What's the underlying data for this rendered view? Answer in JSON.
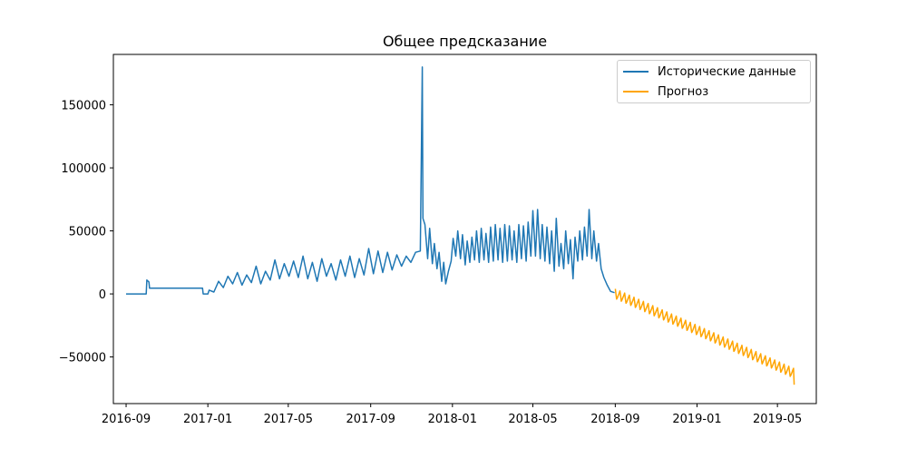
{
  "chart_data": {
    "type": "line",
    "title": "Общее предсказание",
    "xlabel": "",
    "ylabel": "",
    "xlim": [
      "2016-08-13",
      "2019-06-28"
    ],
    "ylim": [
      -87000,
      190000
    ],
    "grid": false,
    "legend_position": "top-right",
    "x_ticks": [
      "2016-09",
      "2017-01",
      "2017-05",
      "2017-09",
      "2018-01",
      "2018-05",
      "2018-09",
      "2019-01",
      "2019-05"
    ],
    "y_ticks": [
      -50000,
      0,
      50000,
      100000,
      150000
    ],
    "y_tick_labels": [
      "−50000",
      "0",
      "50000",
      "100000",
      "150000"
    ],
    "series": [
      {
        "name": "Исторические данные",
        "color": "#1f77b4",
        "points": [
          [
            "2016-09-01",
            0
          ],
          [
            "2016-10-01",
            0
          ],
          [
            "2016-10-02",
            11000
          ],
          [
            "2016-10-05",
            9500
          ],
          [
            "2016-10-06",
            4500
          ],
          [
            "2016-12-24",
            4500
          ],
          [
            "2016-12-25",
            0
          ],
          [
            "2017-01-01",
            0
          ],
          [
            "2017-01-03",
            3000
          ],
          [
            "2017-01-10",
            1500
          ],
          [
            "2017-01-17",
            10000
          ],
          [
            "2017-01-24",
            5000
          ],
          [
            "2017-01-31",
            14000
          ],
          [
            "2017-02-07",
            8000
          ],
          [
            "2017-02-14",
            17000
          ],
          [
            "2017-02-21",
            7000
          ],
          [
            "2017-02-28",
            15000
          ],
          [
            "2017-03-07",
            9000
          ],
          [
            "2017-03-14",
            22000
          ],
          [
            "2017-03-21",
            8000
          ],
          [
            "2017-03-28",
            18000
          ],
          [
            "2017-04-04",
            11000
          ],
          [
            "2017-04-11",
            27000
          ],
          [
            "2017-04-18",
            12000
          ],
          [
            "2017-04-25",
            24000
          ],
          [
            "2017-05-02",
            14000
          ],
          [
            "2017-05-09",
            26000
          ],
          [
            "2017-05-16",
            13000
          ],
          [
            "2017-05-23",
            30000
          ],
          [
            "2017-05-30",
            12000
          ],
          [
            "2017-06-06",
            25000
          ],
          [
            "2017-06-13",
            10000
          ],
          [
            "2017-06-20",
            28000
          ],
          [
            "2017-06-27",
            14000
          ],
          [
            "2017-07-04",
            24000
          ],
          [
            "2017-07-11",
            11000
          ],
          [
            "2017-07-18",
            27000
          ],
          [
            "2017-07-25",
            14000
          ],
          [
            "2017-08-01",
            30000
          ],
          [
            "2017-08-08",
            13000
          ],
          [
            "2017-08-15",
            28000
          ],
          [
            "2017-08-22",
            15000
          ],
          [
            "2017-08-29",
            36000
          ],
          [
            "2017-09-05",
            16000
          ],
          [
            "2017-09-12",
            34000
          ],
          [
            "2017-09-19",
            17000
          ],
          [
            "2017-09-26",
            33000
          ],
          [
            "2017-10-03",
            19000
          ],
          [
            "2017-10-10",
            31000
          ],
          [
            "2017-10-17",
            22000
          ],
          [
            "2017-10-24",
            30000
          ],
          [
            "2017-10-31",
            25000
          ],
          [
            "2017-11-07",
            33000
          ],
          [
            "2017-11-14",
            34000
          ],
          [
            "2017-11-17",
            180000
          ],
          [
            "2017-11-18",
            60000
          ],
          [
            "2017-11-21",
            55000
          ],
          [
            "2017-11-25",
            28000
          ],
          [
            "2017-11-28",
            52000
          ],
          [
            "2017-12-02",
            24000
          ],
          [
            "2017-12-05",
            40000
          ],
          [
            "2017-12-09",
            20000
          ],
          [
            "2017-12-12",
            33000
          ],
          [
            "2017-12-16",
            10000
          ],
          [
            "2017-12-19",
            25000
          ],
          [
            "2017-12-22",
            8000
          ],
          [
            "2017-12-26",
            18000
          ],
          [
            "2017-12-30",
            26000
          ],
          [
            "2018-01-02",
            44000
          ],
          [
            "2018-01-06",
            30000
          ],
          [
            "2018-01-09",
            50000
          ],
          [
            "2018-01-13",
            28000
          ],
          [
            "2018-01-16",
            47000
          ],
          [
            "2018-01-20",
            23000
          ],
          [
            "2018-01-23",
            42000
          ],
          [
            "2018-01-27",
            25000
          ],
          [
            "2018-01-30",
            45000
          ],
          [
            "2018-02-03",
            27000
          ],
          [
            "2018-02-06",
            50000
          ],
          [
            "2018-02-10",
            25000
          ],
          [
            "2018-02-13",
            52000
          ],
          [
            "2018-02-17",
            27000
          ],
          [
            "2018-02-20",
            48000
          ],
          [
            "2018-02-24",
            25000
          ],
          [
            "2018-02-27",
            53000
          ],
          [
            "2018-03-03",
            26000
          ],
          [
            "2018-03-06",
            55000
          ],
          [
            "2018-03-10",
            27000
          ],
          [
            "2018-03-13",
            52000
          ],
          [
            "2018-03-17",
            25000
          ],
          [
            "2018-03-20",
            55000
          ],
          [
            "2018-03-24",
            26000
          ],
          [
            "2018-03-27",
            54000
          ],
          [
            "2018-03-31",
            27000
          ],
          [
            "2018-04-03",
            50000
          ],
          [
            "2018-04-07",
            25000
          ],
          [
            "2018-04-10",
            55000
          ],
          [
            "2018-04-14",
            28000
          ],
          [
            "2018-04-17",
            54000
          ],
          [
            "2018-04-21",
            26000
          ],
          [
            "2018-04-24",
            57000
          ],
          [
            "2018-04-28",
            30000
          ],
          [
            "2018-05-01",
            66000
          ],
          [
            "2018-05-05",
            30000
          ],
          [
            "2018-05-08",
            67000
          ],
          [
            "2018-05-12",
            28000
          ],
          [
            "2018-05-15",
            55000
          ],
          [
            "2018-05-19",
            26000
          ],
          [
            "2018-05-22",
            53000
          ],
          [
            "2018-05-26",
            24000
          ],
          [
            "2018-05-29",
            50000
          ],
          [
            "2018-06-02",
            18000
          ],
          [
            "2018-06-05",
            60000
          ],
          [
            "2018-06-09",
            22000
          ],
          [
            "2018-06-12",
            40000
          ],
          [
            "2018-06-16",
            20000
          ],
          [
            "2018-06-19",
            50000
          ],
          [
            "2018-06-23",
            24000
          ],
          [
            "2018-06-26",
            43000
          ],
          [
            "2018-06-30",
            12000
          ],
          [
            "2018-07-03",
            45000
          ],
          [
            "2018-07-07",
            26000
          ],
          [
            "2018-07-10",
            50000
          ],
          [
            "2018-07-14",
            27000
          ],
          [
            "2018-07-17",
            53000
          ],
          [
            "2018-07-21",
            30000
          ],
          [
            "2018-07-24",
            67000
          ],
          [
            "2018-07-28",
            28000
          ],
          [
            "2018-07-31",
            50000
          ],
          [
            "2018-08-04",
            26000
          ],
          [
            "2018-08-07",
            40000
          ],
          [
            "2018-08-11",
            20000
          ],
          [
            "2018-08-15",
            13000
          ],
          [
            "2018-08-20",
            7000
          ],
          [
            "2018-08-25",
            2000
          ],
          [
            "2018-08-31",
            1000
          ]
        ]
      },
      {
        "name": "Прогноз",
        "color": "#ffa500",
        "start": "2018-09-01",
        "end": "2019-05-25",
        "start_value": 0,
        "end_value": -63000,
        "weekly_swing": 8000,
        "end_dip": -72000
      }
    ]
  }
}
